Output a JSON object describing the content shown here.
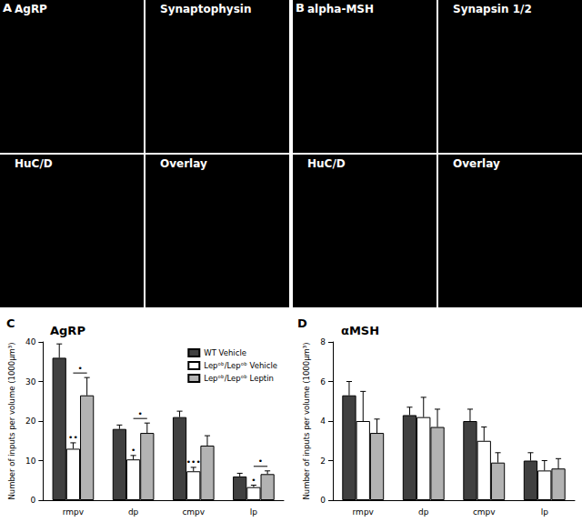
{
  "image_panels": [
    {
      "letter": "A",
      "quadrants": [
        "AgRP",
        "Synaptophysin",
        "HuC/D",
        "Overlay"
      ]
    },
    {
      "letter": "B",
      "quadrants": [
        "alpha-MSH",
        "Synapsin 1/2",
        "HuC/D",
        "Overlay"
      ]
    }
  ],
  "chart_data": [
    {
      "panel": "C",
      "type": "bar",
      "title": "AgRP",
      "ylabel": "Number of inputs per volume (1000µm³)",
      "categories": [
        "rmpv",
        "dp",
        "cmpv",
        "lp"
      ],
      "series": [
        {
          "name": "WT Vehicle",
          "color": "#404040",
          "values": [
            36,
            18,
            21,
            6
          ],
          "errors": [
            3.5,
            1,
            1.5,
            0.8
          ]
        },
        {
          "name": "Lepᵒᵇ/Lepᵒᵇ Vehicle",
          "color": "#ffffff",
          "values": [
            13,
            10.3,
            7.3,
            3.3
          ],
          "errors": [
            1.5,
            1,
            1,
            0.5
          ]
        },
        {
          "name": "Lepᵒᵇ/Lepᵒᵇ Leptin",
          "color": "#b3b3b3",
          "values": [
            26.5,
            17,
            13.8,
            6.6
          ],
          "errors": [
            4.5,
            2.5,
            2.5,
            0.8
          ]
        }
      ],
      "ylim": [
        0,
        40
      ],
      "yticks": [
        0,
        10,
        20,
        30,
        40
      ],
      "legend": "upper right",
      "annotations": [
        {
          "category": "rmpv",
          "series": "Lepᵒᵇ/Lepᵒᵇ Vehicle",
          "text": "••"
        },
        {
          "category": "dp",
          "series": "Lepᵒᵇ/Lepᵒᵇ Vehicle",
          "text": "•"
        },
        {
          "category": "cmpv",
          "series": "Lepᵒᵇ/Lepᵒᵇ Vehicle",
          "text": "•••"
        },
        {
          "category": "lp",
          "series": "Lepᵒᵇ/Lepᵒᵇ Vehicle",
          "text": "•"
        }
      ],
      "brackets": [
        {
          "category": "rmpv",
          "from": "Lepᵒᵇ/Lepᵒᵇ Vehicle",
          "to": "Lepᵒᵇ/Lepᵒᵇ Leptin",
          "text": "•"
        },
        {
          "category": "dp",
          "from": "Lepᵒᵇ/Lepᵒᵇ Vehicle",
          "to": "Lepᵒᵇ/Lepᵒᵇ Leptin",
          "text": "•"
        },
        {
          "category": "lp",
          "from": "Lepᵒᵇ/Lepᵒᵇ Vehicle",
          "to": "Lepᵒᵇ/Lepᵒᵇ Leptin",
          "text": "•"
        }
      ]
    },
    {
      "panel": "D",
      "type": "bar",
      "title": "αMSH",
      "ylabel": "Number of inputs per volume (1000µm³)",
      "categories": [
        "rmpv",
        "dp",
        "cmpv",
        "lp"
      ],
      "series": [
        {
          "name": "WT Vehicle",
          "color": "#404040",
          "values": [
            5.3,
            4.3,
            4.0,
            2.0
          ],
          "errors": [
            0.7,
            0.4,
            0.6,
            0.4
          ]
        },
        {
          "name": "Lepᵒᵇ/Lepᵒᵇ Vehicle",
          "color": "#ffffff",
          "values": [
            4.0,
            4.2,
            3.0,
            1.5
          ],
          "errors": [
            1.5,
            1.0,
            0.7,
            0.5
          ]
        },
        {
          "name": "Lepᵒᵇ/Lepᵒᵇ Leptin",
          "color": "#b3b3b3",
          "values": [
            3.4,
            3.7,
            1.9,
            1.6
          ],
          "errors": [
            0.7,
            0.9,
            0.5,
            0.5
          ]
        }
      ],
      "ylim": [
        0,
        8
      ],
      "yticks": [
        0,
        2,
        4,
        6,
        8
      ]
    }
  ]
}
